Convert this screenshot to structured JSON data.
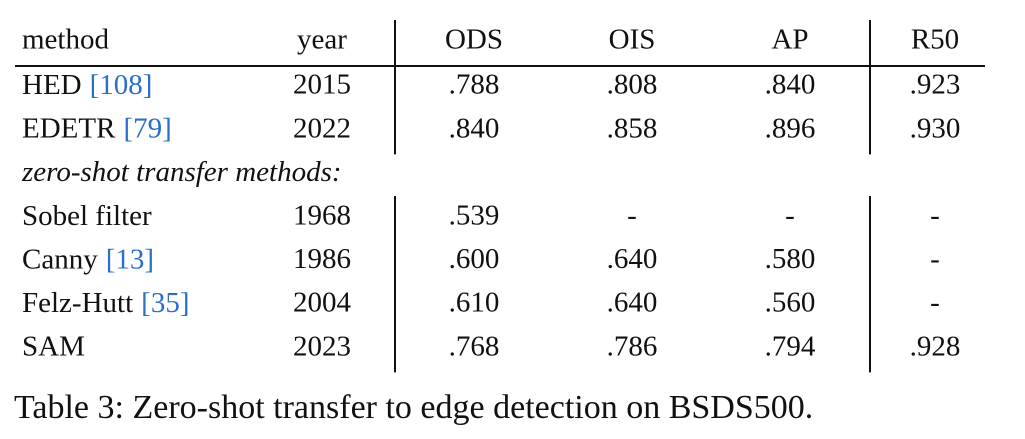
{
  "table": {
    "header": [
      "method",
      "year",
      "ODS",
      "OIS",
      "AP",
      "R50"
    ],
    "groups": [
      {
        "rows": [
          {
            "method": "HED",
            "cite": "[108]",
            "cells": [
              "2015",
              ".788",
              ".808",
              ".840",
              ".923"
            ]
          },
          {
            "method": "EDETR",
            "cite": "[79]",
            "cells": [
              "2022",
              ".840",
              ".858",
              ".896",
              ".930"
            ]
          }
        ]
      },
      {
        "label": "zero-shot transfer methods:",
        "rows": [
          {
            "method": "Sobel filter",
            "cells": [
              "1968",
              ".539",
              "-",
              "-",
              "-"
            ]
          },
          {
            "method": "Canny",
            "cite": "[13]",
            "cells": [
              "1986",
              ".600",
              ".640",
              ".580",
              "-"
            ]
          },
          {
            "method": "Felz-Hutt",
            "cite": "[35]",
            "cells": [
              "2004",
              ".610",
              ".640",
              ".560",
              "-"
            ]
          },
          {
            "method": "SAM",
            "cells": [
              "2023",
              ".768",
              ".786",
              ".794",
              ".928"
            ]
          }
        ]
      }
    ],
    "caption": "Table 3: Zero-shot transfer to edge detection on BSDS500."
  }
}
